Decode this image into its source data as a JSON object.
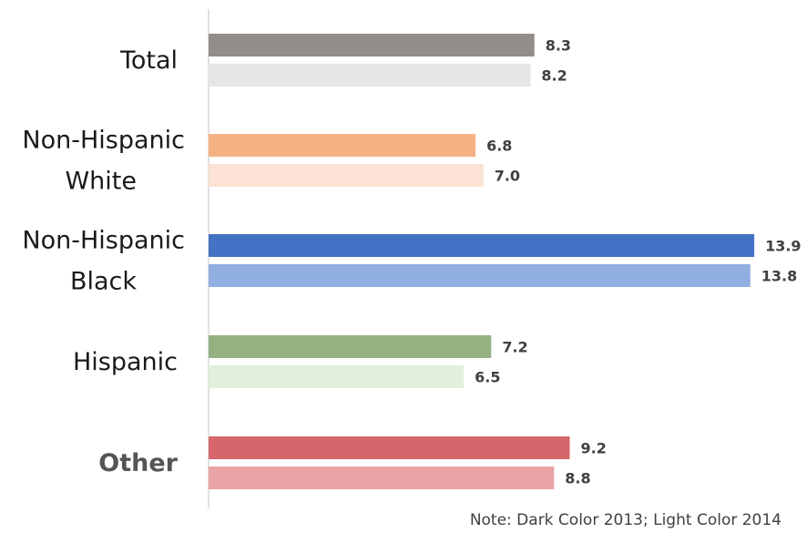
{
  "chart_data": {
    "type": "bar",
    "orientation": "horizontal",
    "categories": [
      "Total",
      "Non-Hispanic White",
      "Non-Hispanic Black",
      "Hispanic",
      "Other"
    ],
    "category_lines": [
      [
        "Total"
      ],
      [
        "Non-Hispanic",
        "White"
      ],
      [
        "Non-Hispanic",
        "Black"
      ],
      [
        "Hispanic"
      ],
      [
        "Other"
      ]
    ],
    "series": [
      {
        "values": [
          8.3,
          6.8,
          13.9,
          7.2,
          9.2
        ],
        "colors": [
          "#918d8b",
          "#f4b183",
          "#4472c4",
          "#93b181",
          "#d6666c"
        ]
      },
      {
        "values": [
          8.2,
          7.0,
          13.8,
          6.5,
          8.8
        ],
        "colors": [
          "#e6e6e6",
          "#fbe2d5",
          "#91aee1",
          "#e2efda",
          "#e8a3a5"
        ]
      }
    ],
    "value_labels": [
      [
        "8.3",
        "6.8",
        "13.9",
        "7.2",
        "9.2"
      ],
      [
        "8.2",
        "7.0",
        "13.8",
        "6.5",
        "8.8"
      ]
    ],
    "xlim": [
      0,
      14
    ],
    "grid": false,
    "axis_line_color": "#d9d9d9"
  },
  "note": "Note: Dark Color 2013; Light Color 2014"
}
